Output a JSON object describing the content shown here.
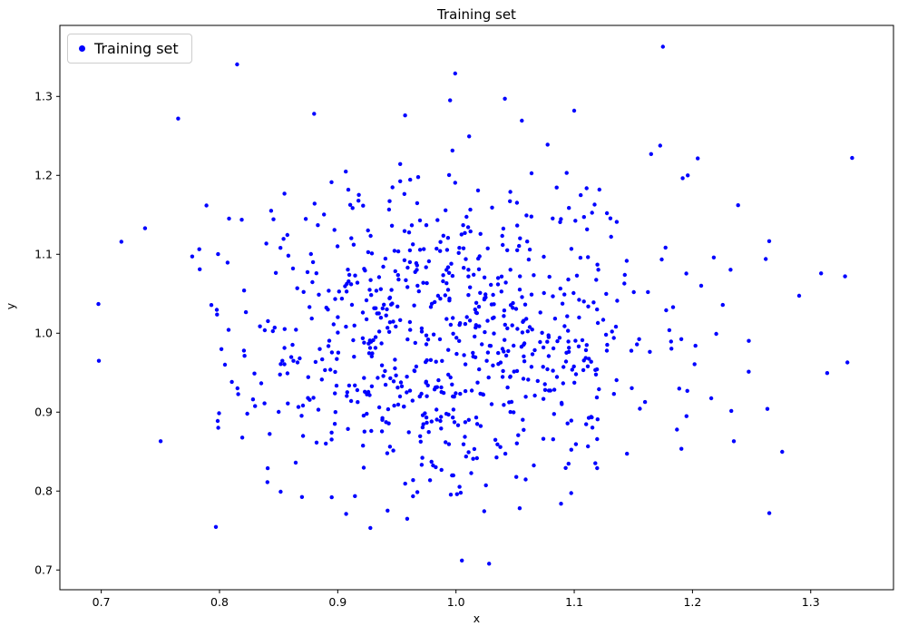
{
  "figure": {
    "title": "Training set",
    "xlabel": "x",
    "ylabel": "y"
  },
  "legend": {
    "label": "Training set"
  },
  "chart_data": {
    "type": "scatter",
    "title": "Training set",
    "xlabel": "x",
    "ylabel": "y",
    "xlim": [
      0.665,
      1.37
    ],
    "ylim": [
      0.675,
      1.39
    ],
    "xticks": [
      0.7,
      0.8,
      0.9,
      1.0,
      1.1,
      1.2,
      1.3
    ],
    "yticks": [
      0.7,
      0.8,
      0.9,
      1.0,
      1.1,
      1.2,
      1.3
    ],
    "grid": false,
    "legend": {
      "label": "Training set",
      "position": "upper-left"
    },
    "marker": {
      "color": "#0000ff",
      "radius": 2.2
    },
    "series": [
      {
        "name": "Training set",
        "distribution": {
          "type": "gaussian",
          "mean_x": 1.0,
          "mean_y": 1.0,
          "std_x": 0.096,
          "std_y": 0.103,
          "n": 780,
          "seed": 7
        },
        "points_sample": [
          [
            1.175,
            1.363
          ],
          [
            0.765,
            1.272
          ],
          [
            1.335,
            1.222
          ],
          [
            1.329,
            1.072
          ],
          [
            1.331,
            0.963
          ],
          [
            0.698,
            0.965
          ],
          [
            0.717,
            1.116
          ],
          [
            0.737,
            1.133
          ],
          [
            1.005,
            0.712
          ],
          [
            1.028,
            0.708
          ],
          [
            1.265,
            0.772
          ],
          [
            1.1,
            1.282
          ],
          [
            0.88,
            1.278
          ],
          [
            0.957,
            1.276
          ],
          [
            0.995,
            1.295
          ],
          [
            1.262,
            1.094
          ],
          [
            1.218,
            1.096
          ],
          [
            1.196,
            1.2
          ],
          [
            1.165,
            1.227
          ]
        ]
      }
    ]
  }
}
